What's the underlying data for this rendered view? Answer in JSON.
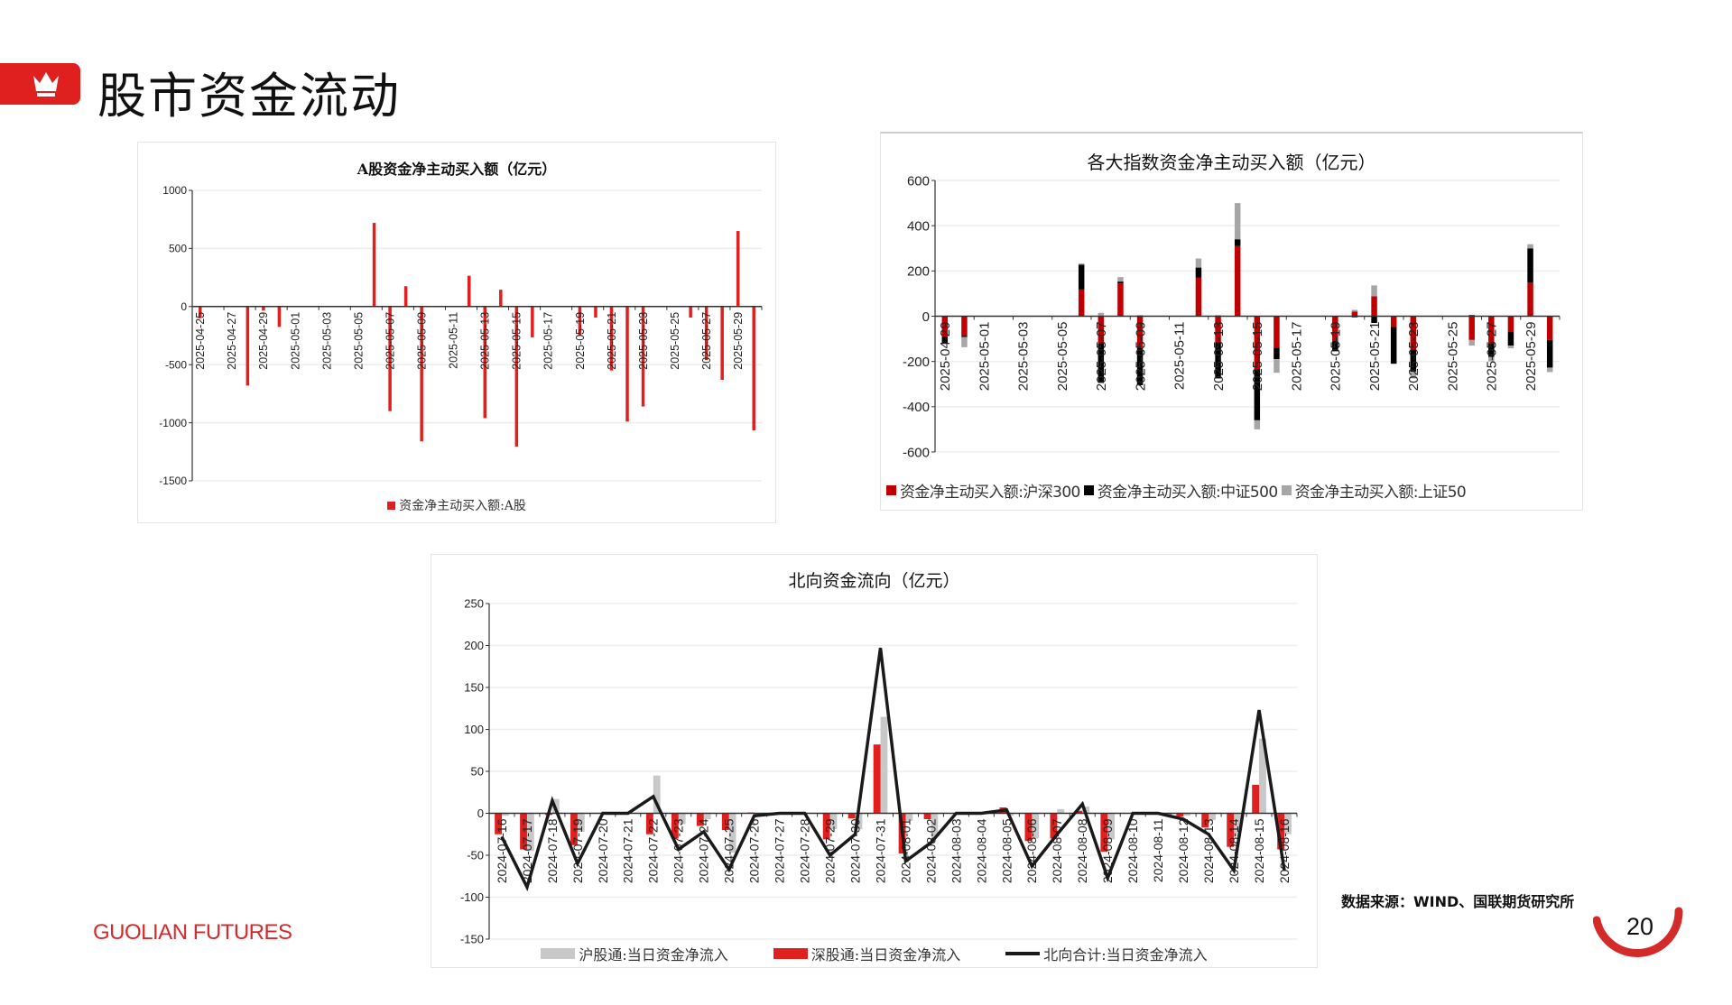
{
  "header": {
    "title": "股市资金流动",
    "icon": "crown-icon",
    "accent": "#e0201f"
  },
  "footer": {
    "brand": "GUOLIAN FUTURES",
    "source": "数据来源：WIND、国联期货研究所",
    "page_number": "20"
  },
  "chart_data": [
    {
      "type": "bar",
      "title": "A股资金净主动买入额（亿元）",
      "ylim": [
        -1500,
        1000
      ],
      "yticks": [
        1000,
        500,
        0,
        -500,
        -1000,
        -1500
      ],
      "grid": true,
      "legend_position": "bottom",
      "categories": [
        "2025-04-25",
        "2025-04-26",
        "2025-04-27",
        "2025-04-28",
        "2025-04-29",
        "2025-04-30",
        "2025-05-01",
        "2025-05-02",
        "2025-05-03",
        "2025-05-04",
        "2025-05-05",
        "2025-05-06",
        "2025-05-07",
        "2025-05-08",
        "2025-05-09",
        "2025-05-10",
        "2025-05-11",
        "2025-05-12",
        "2025-05-13",
        "2025-05-14",
        "2025-05-15",
        "2025-05-16",
        "2025-05-17",
        "2025-05-18",
        "2025-05-19",
        "2025-05-20",
        "2025-05-21",
        "2025-05-22",
        "2025-05-23",
        "2025-05-24",
        "2025-05-25",
        "2025-05-26",
        "2025-05-27",
        "2025-05-28",
        "2025-05-29",
        "2025-05-30"
      ],
      "series": [
        {
          "name": "资金净主动买入额:A股",
          "color": "#e0201f",
          "values": [
            -100,
            null,
            null,
            -680,
            -35,
            -175,
            null,
            null,
            null,
            null,
            null,
            720,
            -900,
            175,
            -1160,
            null,
            null,
            265,
            -960,
            145,
            -1205,
            -265,
            null,
            null,
            -250,
            -95,
            -550,
            -990,
            -860,
            null,
            null,
            -95,
            -460,
            -630,
            650,
            -1065
          ]
        }
      ]
    },
    {
      "type": "bar",
      "stacked": true,
      "title": "各大指数资金净主动买入额（亿元）",
      "ylim": [
        -600,
        600
      ],
      "yticks": [
        600,
        400,
        200,
        0,
        -200,
        -400,
        -600
      ],
      "grid": true,
      "legend_position": "bottom",
      "categories": [
        "2025-04-29",
        "2025-04-30",
        "2025-05-01",
        "2025-05-02",
        "2025-05-03",
        "2025-05-04",
        "2025-05-05",
        "2025-05-06",
        "2025-05-07",
        "2025-05-08",
        "2025-05-09",
        "2025-05-10",
        "2025-05-11",
        "2025-05-12",
        "2025-05-13",
        "2025-05-14",
        "2025-05-15",
        "2025-05-16",
        "2025-05-17",
        "2025-05-18",
        "2025-05-19",
        "2025-05-20",
        "2025-05-21",
        "2025-05-22",
        "2025-05-23",
        "2025-05-24",
        "2025-05-25",
        "2025-05-26",
        "2025-05-27",
        "2025-05-28",
        "2025-05-29",
        "2025-05-30"
      ],
      "series": [
        {
          "name": "资金净主动买入额:沪深300",
          "color": "#c00000",
          "values": [
            -90,
            -87,
            null,
            null,
            null,
            null,
            null,
            118,
            -120,
            145,
            -140,
            null,
            null,
            170,
            -115,
            310,
            -235,
            -140,
            null,
            null,
            -110,
            20,
            88,
            -48,
            -150,
            null,
            null,
            -105,
            -120,
            -70,
            148,
            -105
          ]
        },
        {
          "name": "资金净主动买入额:中证500",
          "color": "#000000",
          "values": [
            -30,
            -5,
            null,
            null,
            null,
            null,
            null,
            110,
            -175,
            8,
            -165,
            null,
            null,
            45,
            -160,
            30,
            -225,
            -50,
            null,
            null,
            -45,
            -5,
            -30,
            -162,
            -95,
            null,
            null,
            5,
            -60,
            -60,
            152,
            -122
          ]
        },
        {
          "name": "资金净主动买入额:上证50",
          "color": "#a6a6a6",
          "values": [
            0,
            -45,
            null,
            null,
            null,
            null,
            null,
            5,
            15,
            20,
            5,
            null,
            null,
            40,
            5,
            160,
            -40,
            -60,
            null,
            null,
            0,
            8,
            48,
            0,
            -30,
            null,
            null,
            -25,
            -20,
            -12,
            18,
            -20
          ]
        }
      ]
    },
    {
      "type": "bar+line",
      "title": "北向资金流向（亿元）",
      "ylim": [
        -150,
        250
      ],
      "yticks": [
        250,
        200,
        150,
        100,
        50,
        0,
        -50,
        -100,
        -150
      ],
      "grid": true,
      "legend_position": "bottom",
      "categories": [
        "2024-07-16",
        "2024-07-17",
        "2024-07-18",
        "2024-07-19",
        "2024-07-20",
        "2024-07-21",
        "2024-07-22",
        "2024-07-23",
        "2024-07-24",
        "2024-07-25",
        "2024-07-26",
        "2024-07-27",
        "2024-07-28",
        "2024-07-29",
        "2024-07-30",
        "2024-07-31",
        "2024-08-01",
        "2024-08-02",
        "2024-08-03",
        "2024-08-04",
        "2024-08-05",
        "2024-08-06",
        "2024-08-07",
        "2024-08-08",
        "2024-08-09",
        "2024-08-10",
        "2024-08-11",
        "2024-08-12",
        "2024-08-13",
        "2024-08-14",
        "2024-08-15",
        "2024-08-16"
      ],
      "series": [
        {
          "name": "沪股通:当日资金净流入",
          "kind": "bar",
          "color": "#c8c8c8",
          "values": [
            -3,
            -45,
            17,
            -22,
            null,
            null,
            45,
            -13,
            -7,
            -47,
            -4,
            null,
            null,
            -19,
            -19,
            115,
            -9,
            -28,
            null,
            null,
            -3,
            -30,
            5,
            8,
            -31,
            null,
            null,
            -3,
            -8,
            -28,
            89,
            -25
          ]
        },
        {
          "name": "深股通:当日资金净流入",
          "kind": "bar",
          "color": "#e0201f",
          "values": [
            -25,
            -43,
            -2,
            -38,
            null,
            null,
            -25,
            -30,
            -15,
            -20,
            1,
            null,
            null,
            -31,
            -6,
            82,
            -48,
            -7,
            null,
            null,
            7,
            -33,
            -30,
            3,
            -46,
            null,
            null,
            -4,
            -17,
            -40,
            34,
            -43
          ]
        },
        {
          "name": "北向合计:当日资金净流入",
          "kind": "line",
          "color": "#1a1a1a",
          "values": [
            -28,
            -88,
            15,
            -60,
            0,
            0,
            20,
            -43,
            -22,
            -67,
            -3,
            0,
            0,
            -50,
            -25,
            197,
            -57,
            -35,
            0,
            0,
            4,
            -63,
            -25,
            11,
            -77,
            0,
            0,
            -7,
            -25,
            -68,
            123,
            -68
          ]
        }
      ]
    }
  ]
}
